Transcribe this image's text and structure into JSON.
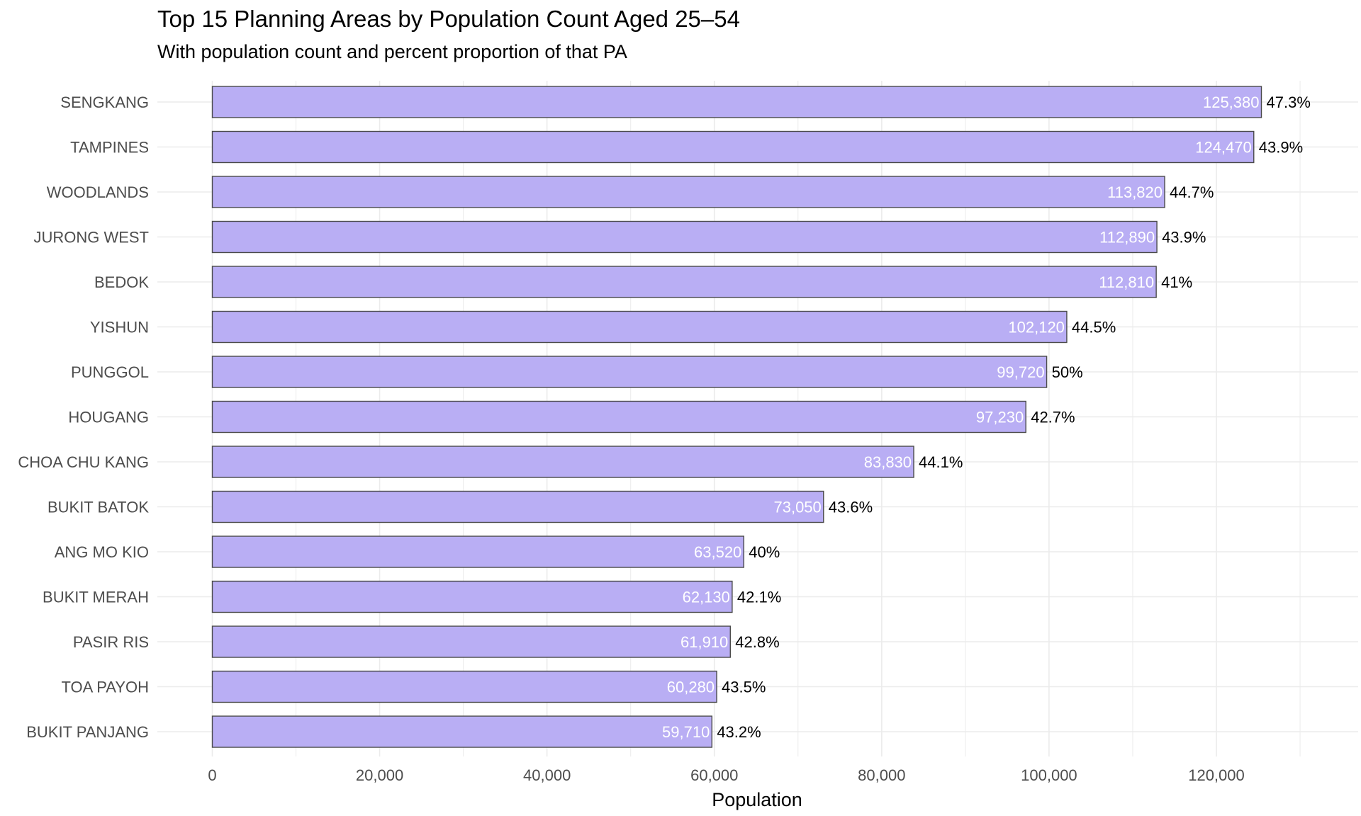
{
  "chart_data": {
    "type": "bar",
    "orientation": "horizontal",
    "title": "Top 15 Planning Areas by Population Count Aged 25–54",
    "subtitle": "With population count and percent proportion of that PA",
    "xlabel": "Population",
    "ylabel": "",
    "xlim": [
      0,
      131000
    ],
    "x_ticks": [
      0,
      20000,
      40000,
      60000,
      80000,
      100000,
      120000
    ],
    "x_tick_labels": [
      "0",
      "20,000",
      "40,000",
      "60,000",
      "80,000",
      "100,000",
      "120,000"
    ],
    "grid": true,
    "legend": "none",
    "categories": [
      "SENGKANG",
      "TAMPINES",
      "WOODLANDS",
      "JURONG WEST",
      "BEDOK",
      "YISHUN",
      "PUNGGOL",
      "HOUGANG",
      "CHOA CHU KANG",
      "BUKIT BATOK",
      "ANG MO KIO",
      "BUKIT MERAH",
      "PASIR RIS",
      "TOA PAYOH",
      "BUKIT PANJANG"
    ],
    "values": [
      125380,
      124470,
      113820,
      112890,
      112810,
      102120,
      99720,
      97230,
      83830,
      73050,
      63520,
      62130,
      61910,
      60280,
      59710
    ],
    "value_labels": [
      "125,380",
      "124,470",
      "113,820",
      "112,890",
      "112,810",
      "102,120",
      "99,720",
      "97,230",
      "83,830",
      "73,050",
      "63,520",
      "62,130",
      "61,910",
      "60,280",
      "59,710"
    ],
    "percent_labels": [
      "47.3%",
      "43.9%",
      "44.7%",
      "43.9%",
      "41%",
      "44.5%",
      "50%",
      "42.7%",
      "44.1%",
      "43.6%",
      "40%",
      "42.1%",
      "42.8%",
      "43.5%",
      "43.2%"
    ],
    "colors": {
      "bar_fill": "#b9aef4",
      "bar_outline": "#4a4a4a",
      "value_label": "#ffffff",
      "percent_label": "#000000",
      "grid": "#ebebeb",
      "axis_text": "#4d4d4d"
    }
  }
}
